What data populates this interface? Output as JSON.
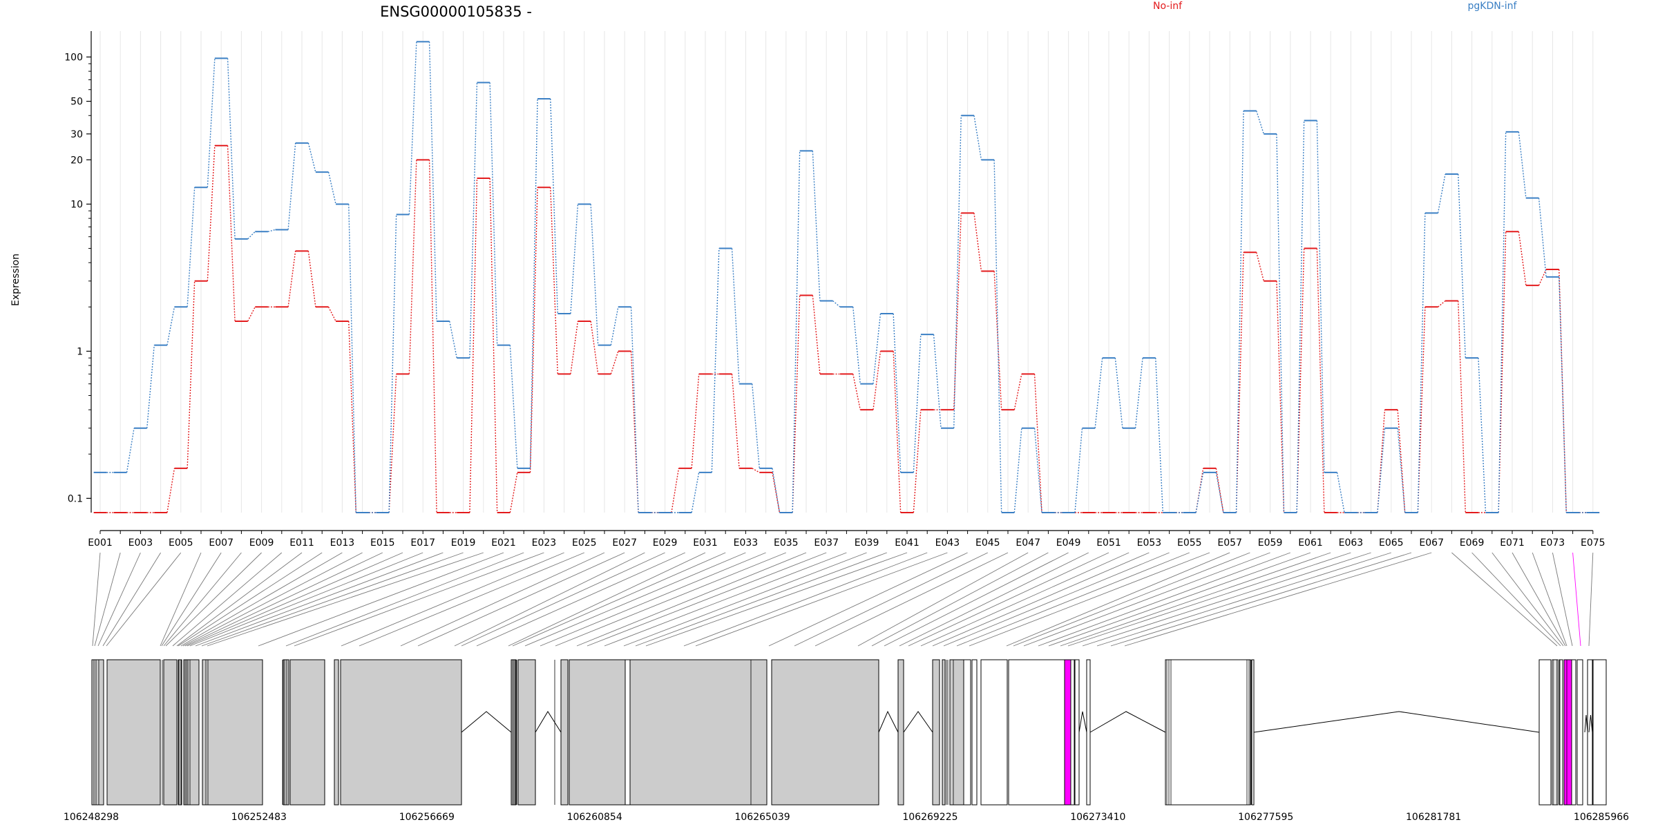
{
  "chart_data": {
    "type": "line",
    "title": "ENSG00000105835 -",
    "ylabel": "Expression",
    "y_scale": "log",
    "y_range": [
      0.08,
      150
    ],
    "y_ticks": [
      0.1,
      1,
      10,
      20,
      30,
      50,
      100
    ],
    "y_tick_labels": [
      "0.1",
      "1",
      "10",
      "20",
      "30",
      "50",
      "100"
    ],
    "grid": "vertical, light",
    "legend_position": "top",
    "categories": [
      "E001",
      "E002",
      "E003",
      "E004",
      "E005",
      "E006",
      "E007",
      "E008",
      "E009",
      "E010",
      "E011",
      "E012",
      "E013",
      "E014",
      "E015",
      "E016",
      "E017",
      "E018",
      "E019",
      "E020",
      "E021",
      "E022",
      "E023",
      "E024",
      "E025",
      "E026",
      "E027",
      "E028",
      "E029",
      "E030",
      "E031",
      "E032",
      "E033",
      "E034",
      "E035",
      "E036",
      "E037",
      "E038",
      "E039",
      "E040",
      "E041",
      "E042",
      "E043",
      "E044",
      "E045",
      "E046",
      "E047",
      "E048",
      "E049",
      "E050",
      "E051",
      "E052",
      "E053",
      "E054",
      "E055",
      "E056",
      "E057",
      "E058",
      "E059",
      "E060",
      "E061",
      "E062",
      "E063",
      "E064",
      "E065",
      "E066",
      "E067",
      "E068",
      "E069",
      "E070",
      "E071",
      "E072",
      "E073",
      "E074",
      "E075"
    ],
    "x_tick_labels": [
      "E001",
      "E003",
      "E005",
      "E007",
      "E009",
      "E011",
      "E013",
      "E015",
      "E017",
      "E019",
      "E021",
      "E023",
      "E025",
      "E027",
      "E029",
      "E031",
      "E033",
      "E035",
      "E037",
      "E039",
      "E041",
      "E043",
      "E045",
      "E047",
      "E049",
      "E051",
      "E053",
      "E055",
      "E057",
      "E059",
      "E061",
      "E063",
      "E065",
      "E067",
      "E069",
      "E071",
      "E073",
      "E075"
    ],
    "series": [
      {
        "name": "No-inf",
        "color": "#e31a1c",
        "values": [
          0.08,
          0.08,
          0.08,
          0.08,
          0.16,
          3.0,
          25,
          1.6,
          2.0,
          2.0,
          4.8,
          2.0,
          1.6,
          0.08,
          0.08,
          0.7,
          20,
          0.08,
          0.08,
          15,
          0.08,
          0.15,
          13,
          0.7,
          1.6,
          0.7,
          1.0,
          0.08,
          0.08,
          0.16,
          0.7,
          0.7,
          0.16,
          0.15,
          0.08,
          2.4,
          0.7,
          0.7,
          0.4,
          1.0,
          0.08,
          0.4,
          0.4,
          8.7,
          3.5,
          0.4,
          0.7,
          0.08,
          0.08,
          0.08,
          0.08,
          0.08,
          0.08,
          0.08,
          0.08,
          0.16,
          0.08,
          4.7,
          3.0,
          0.08,
          5.0,
          0.08,
          0.08,
          0.08,
          0.4,
          0.08,
          2.0,
          2.2,
          0.08,
          0.08,
          6.5,
          2.8,
          3.6,
          0.08,
          0.08
        ]
      },
      {
        "name": "pgKDN-inf",
        "color": "#3a7fc4",
        "values": [
          0.15,
          0.15,
          0.3,
          1.1,
          2.0,
          13,
          98,
          5.8,
          6.5,
          6.7,
          26,
          16.5,
          10,
          0.08,
          0.08,
          8.5,
          127,
          1.6,
          0.9,
          67,
          1.1,
          0.16,
          52,
          1.8,
          10,
          1.1,
          2.0,
          0.08,
          0.08,
          0.08,
          0.15,
          5.0,
          0.6,
          0.16,
          0.08,
          23,
          2.2,
          2.0,
          0.6,
          1.8,
          0.15,
          1.3,
          0.3,
          40,
          20,
          0.08,
          0.3,
          0.08,
          0.08,
          0.3,
          0.9,
          0.3,
          0.9,
          0.08,
          0.08,
          0.15,
          0.08,
          43,
          30,
          0.08,
          37,
          0.15,
          0.08,
          0.08,
          0.3,
          0.08,
          8.7,
          16,
          0.9,
          0.08,
          31,
          11,
          3.2,
          0.08,
          0.08
        ]
      }
    ],
    "gene_model": {
      "coordinate_labels": [
        "106248298",
        "106252483",
        "106256669",
        "106260854",
        "106265039",
        "106269225",
        "106273410",
        "106277595",
        "106281781",
        "106285966"
      ],
      "highlight_exon": "E074",
      "highlight_color": "#ff00ff"
    }
  }
}
